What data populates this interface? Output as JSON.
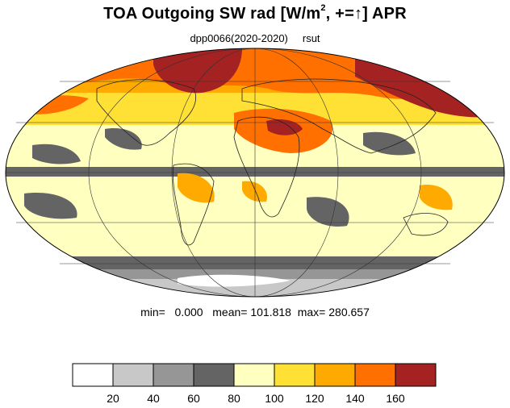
{
  "title": {
    "main": "TOA Outgoing SW rad [W/m",
    "exponent": "2",
    "suffix": ", +=↑] APR"
  },
  "subtitle": {
    "run": "dpp0066(2020-2020)",
    "variable": "rsut"
  },
  "stats": {
    "min_label": "min=",
    "min_value": "0.000",
    "mean_label": "mean=",
    "mean_value": "101.818",
    "max_label": "max=",
    "max_value": "280.657"
  },
  "projection": "mollweide",
  "colorbar": {
    "colors": [
      "#ffffff",
      "#c8c8c8",
      "#969696",
      "#646464",
      "#ffffc0",
      "#ffe135",
      "#ffaa00",
      "#ff7000",
      "#a52222"
    ],
    "tick_labels": [
      "20",
      "40",
      "60",
      "80",
      "100",
      "120",
      "140",
      "160"
    ]
  }
}
